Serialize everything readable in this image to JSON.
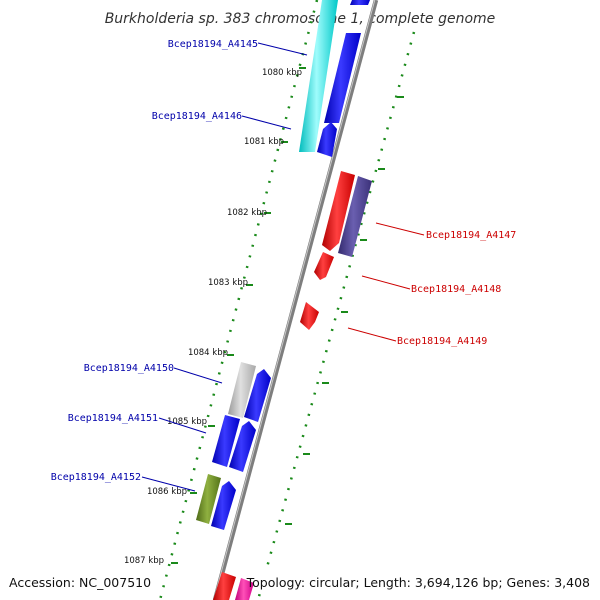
{
  "title": "Burkholderia sp. 383 chromosome 1, complete genome",
  "footer": {
    "accession": "Accession: NC_007510",
    "summary": "Topology: circular; Length: 3,694,126 bp; Genes: 3,408"
  },
  "ticks": [
    "1080 kbp",
    "1081 kbp",
    "1082 kbp",
    "1083 kbp",
    "1084 kbp",
    "1085 kbp",
    "1086 kbp",
    "1087 kbp"
  ],
  "colors": {
    "backbone": "#8a8a8a",
    "ruler": "#1a8a1a",
    "forward_label": "#0000aa",
    "reverse_label": "#cc0000"
  },
  "genes": [
    {
      "id": "Bcep18194_A4145",
      "strand": "forward",
      "color": "#00e5e5"
    },
    {
      "id": "Bcep18194_A4146",
      "strand": "forward",
      "color": "#0000ee"
    },
    {
      "id": "Bcep18194_A4147",
      "strand": "reverse",
      "color": "#4a3f8f"
    },
    {
      "id": "Bcep18194_A4148",
      "strand": "reverse",
      "color": "#ee0000"
    },
    {
      "id": "Bcep18194_A4149",
      "strand": "reverse",
      "color": "#ee0000"
    },
    {
      "id": "Bcep18194_A4150",
      "strand": "forward",
      "color": "#bbbbbb"
    },
    {
      "id": "Bcep18194_A4151",
      "strand": "forward",
      "color": "#0000ee"
    },
    {
      "id": "Bcep18194_A4152",
      "strand": "forward",
      "color": "#6b8e23"
    }
  ]
}
